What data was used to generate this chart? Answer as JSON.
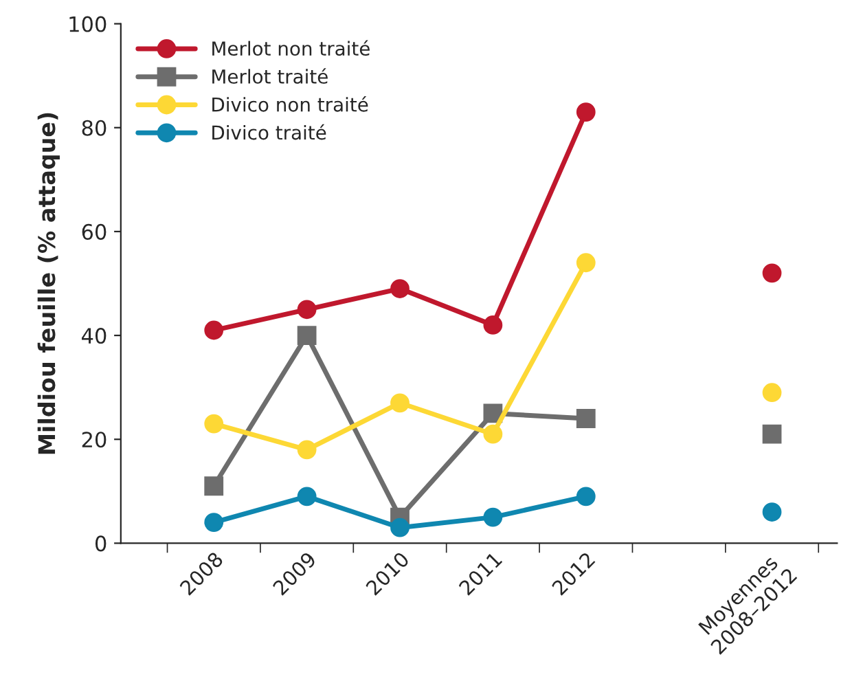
{
  "chart_data": {
    "type": "line",
    "ylabel": "Mildiou feuille (% attaque)",
    "categories": [
      "2008",
      "2009",
      "2010",
      "2011",
      "2012",
      null,
      "Moyennes\n2008–2012"
    ],
    "ylim": [
      0,
      100
    ],
    "yticks": [
      0,
      20,
      40,
      60,
      80,
      100
    ],
    "grid": false,
    "legend": "top left",
    "line_style": "solid",
    "series": [
      {
        "name": "Merlot non traité",
        "color": "#c0182d",
        "marker": "circle",
        "values": [
          41,
          45,
          49,
          42,
          83,
          null,
          52
        ]
      },
      {
        "name": "Merlot traité",
        "color": "#6d6d6d",
        "marker": "square",
        "values": [
          11,
          40,
          5,
          25,
          24,
          null,
          21
        ]
      },
      {
        "name": "Divico non traité",
        "color": "#fdd835",
        "marker": "circle",
        "values": [
          23,
          18,
          27,
          21,
          54,
          null,
          29
        ]
      },
      {
        "name": "Divico traité",
        "color": "#0f87b0",
        "marker": "circle",
        "values": [
          4,
          9,
          3,
          5,
          9,
          null,
          6
        ]
      }
    ]
  }
}
